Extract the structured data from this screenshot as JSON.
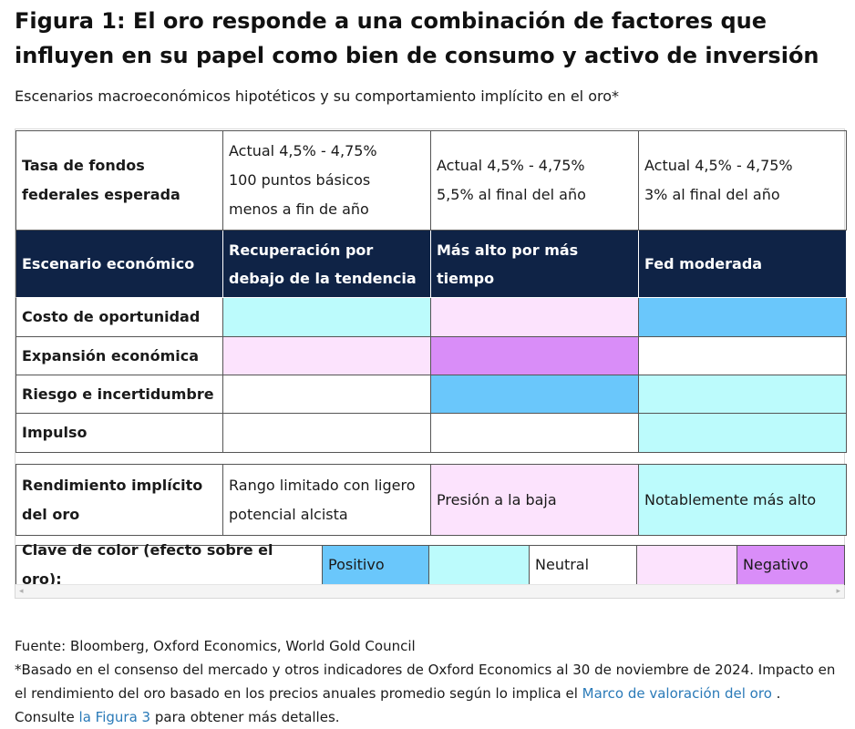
{
  "title": "Figura 1: El oro responde a una combinación de factores que influyen en su papel como bien de consumo y activo de inversión",
  "subtitle": "Escenarios macroeconómicos hipotéticos y su comportamiento implícito en el oro*",
  "table": {
    "rate_row": {
      "label": "Tasa de fondos federales esperada",
      "c1": [
        "Actual 4,5% - 4,75%",
        "100 puntos básicos",
        "menos a fin de año"
      ],
      "c2": [
        "Actual 4,5% - 4,75%",
        "5,5% al final del año"
      ],
      "c3": [
        "Actual 4,5% - 4,75%",
        "3% al final del año"
      ]
    },
    "header_row": {
      "label": "Escenario económico",
      "c1": "Recuperación por debajo de la tendencia",
      "c2": "Más alto por más tiempo",
      "c3": "Fed moderada"
    },
    "factors": [
      {
        "label": "Costo de oportunidad",
        "colors": [
          "#bcfbfc",
          "#fce3fd",
          "#6ac7fb"
        ]
      },
      {
        "label": "Expansión económica",
        "colors": [
          "#fce3fd",
          "#d98df8",
          "#ffffff"
        ]
      },
      {
        "label": "Riesgo e incertidumbre",
        "colors": [
          "#ffffff",
          "#6ac7fb",
          "#bcfbfc"
        ]
      },
      {
        "label": "Impulso",
        "colors": [
          "#ffffff",
          "#ffffff",
          "#bcfbfc"
        ]
      }
    ],
    "yield_row": {
      "label": "Rendimiento implícito del oro",
      "c1": "Rango limitado con ligero potencial alcista",
      "c2": "Presión a la baja",
      "c3": "Notablemente más alto"
    },
    "key_row": {
      "label": "Clave de color (efecto sobre el oro):",
      "positive": "Positivo",
      "neutral": "Neutral",
      "negative": "Negativo"
    },
    "colors": {
      "header_bg": "#0f2346",
      "strong_positive": "#6ac7fb",
      "positive": "#bcfbfc",
      "neutral": "#ffffff",
      "negative": "#fce3fd",
      "strong_negative": "#d98df8"
    }
  },
  "footer": {
    "source": "Fuente: Bloomberg, Oxford Economics, World Gold Council",
    "note_start": "*Basado en el consenso del mercado y otros indicadores de Oxford Economics al 30 de noviembre de 2024. Impacto en el rendimiento del oro basado en los precios anuales promedio según lo implica el",
    "link1": "Marco de valoración del oro",
    "note_mid": ". Consulte",
    "link2": "la Figura 3",
    "note_end": "para obtener más detalles."
  }
}
